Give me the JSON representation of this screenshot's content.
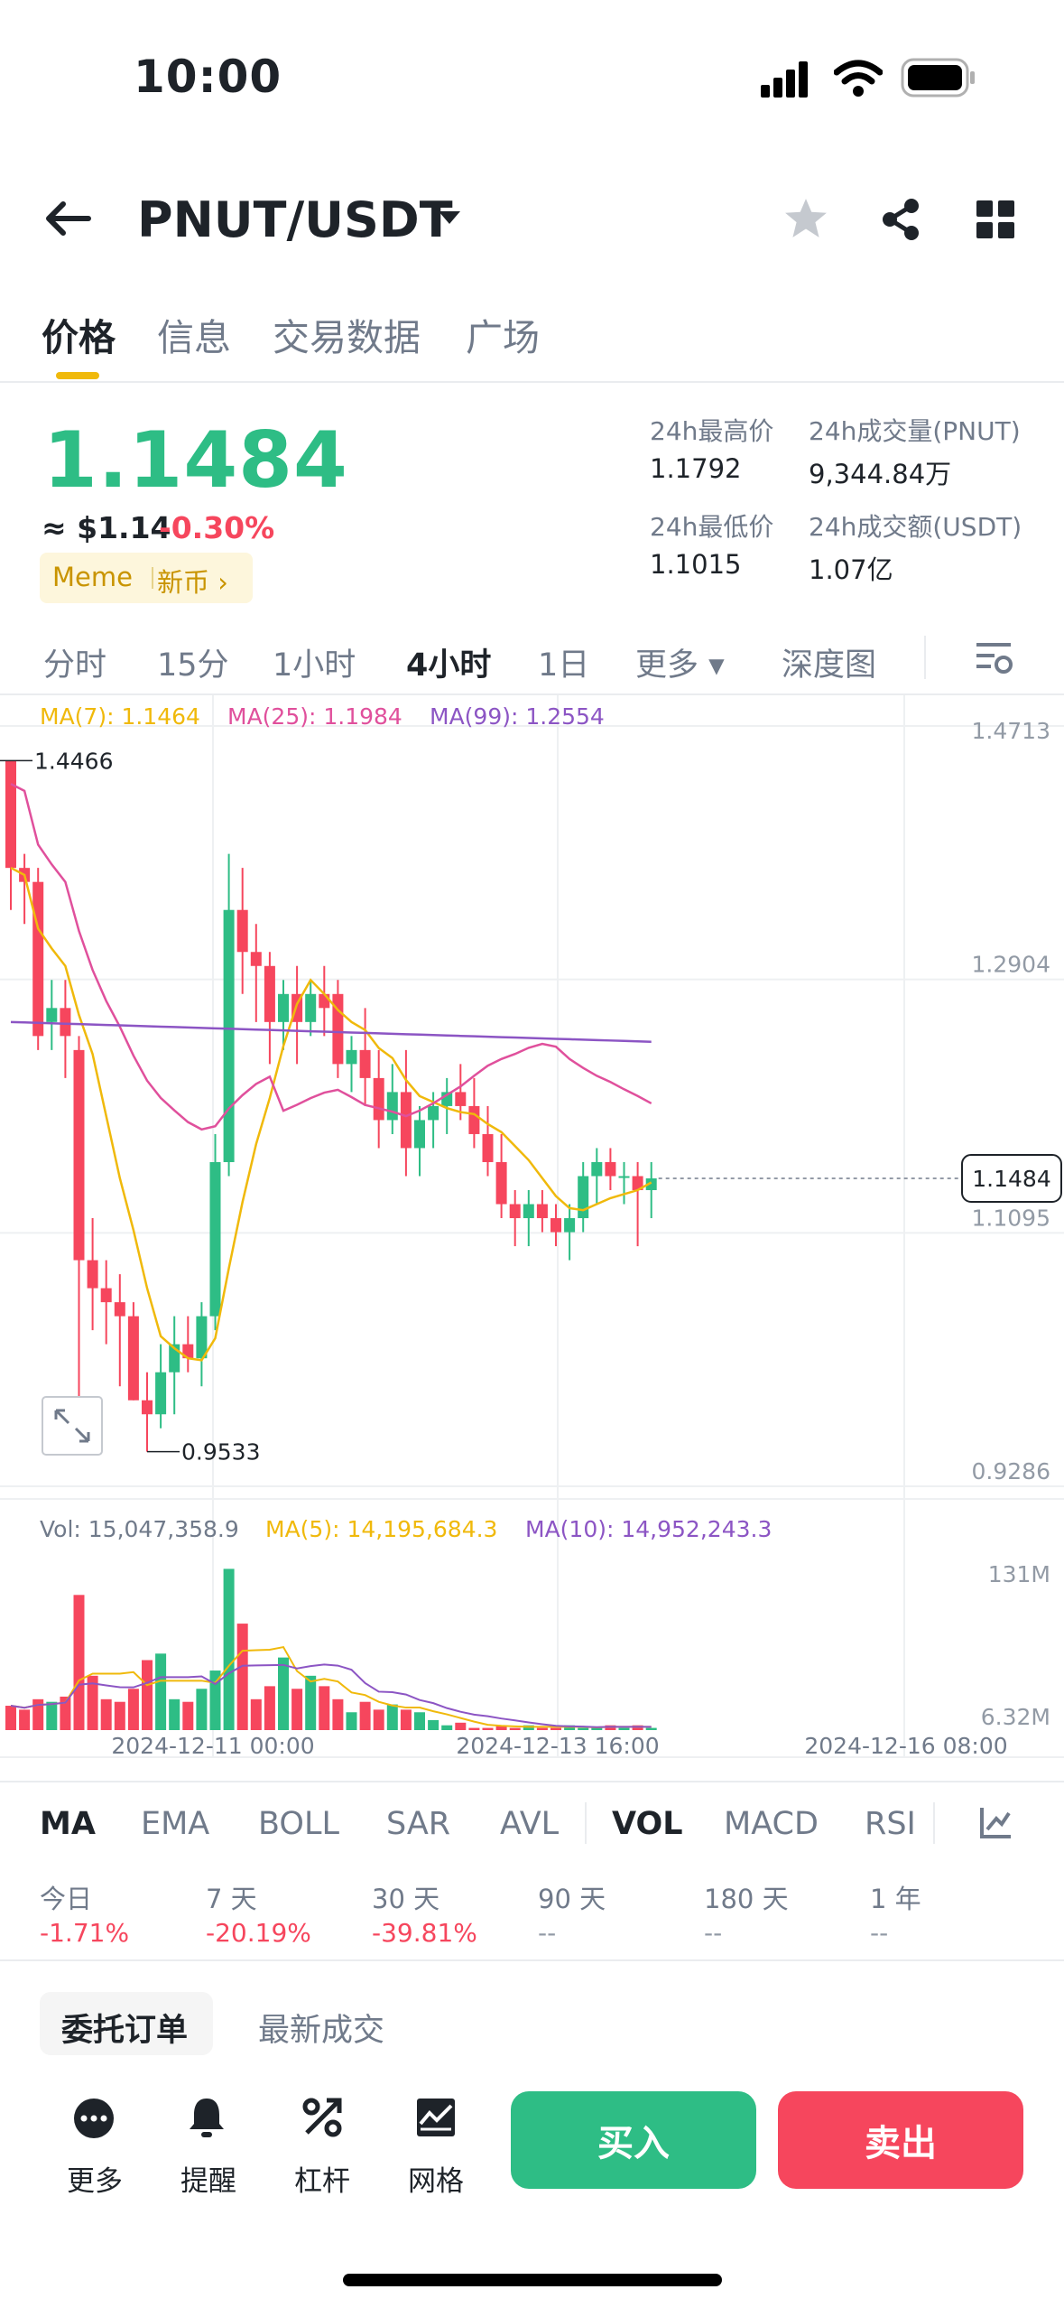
{
  "status_bar": {
    "time": "10:00"
  },
  "header": {
    "pair": "PNUT/USDT"
  },
  "tabs": [
    {
      "label": "价格",
      "active": true
    },
    {
      "label": "信息"
    },
    {
      "label": "交易数据"
    },
    {
      "label": "广场"
    }
  ],
  "ticker": {
    "last_price": "1.1484",
    "usd_price": "≈ $1.14",
    "change": "-0.30%",
    "tag_meme": "Meme",
    "tag_new": "新币 ›"
  },
  "stats": {
    "high_label": "24h最高价",
    "high": "1.1792",
    "vol_label": "24h成交量(PNUT)",
    "vol": "9,344.84万",
    "low_label": "24h最低价",
    "low": "1.1015",
    "amt_label": "24h成交额(USDT)",
    "amt": "1.07亿"
  },
  "timeframes": [
    {
      "label": "分时"
    },
    {
      "label": "15分"
    },
    {
      "label": "1小时"
    },
    {
      "label": "4小时",
      "active": true
    },
    {
      "label": "1日"
    },
    {
      "label": "更多 ▾"
    },
    {
      "label": "深度图"
    }
  ],
  "chart_data": {
    "type": "candlestick",
    "ma_legend": {
      "ma7": "MA(7): 1.1464",
      "ma25": "MA(25): 1.1984",
      "ma99": "MA(99): 1.2554"
    },
    "y_ticks": [
      "1.4713",
      "1.2904",
      "1.1095",
      "0.9286"
    ],
    "y_range": [
      0.9286,
      1.4713
    ],
    "high_label": "1.4466",
    "low_label": "0.9533",
    "current_price": "1.1484",
    "candles": [
      [
        1.4466,
        1.4466,
        1.34,
        1.37
      ],
      [
        1.37,
        1.38,
        1.33,
        1.36
      ],
      [
        1.36,
        1.37,
        1.24,
        1.25
      ],
      [
        1.26,
        1.29,
        1.24,
        1.27
      ],
      [
        1.27,
        1.29,
        1.22,
        1.25
      ],
      [
        1.24,
        1.25,
        0.99,
        1.09
      ],
      [
        1.09,
        1.12,
        1.04,
        1.07
      ],
      [
        1.07,
        1.09,
        1.03,
        1.06
      ],
      [
        1.06,
        1.08,
        1.0,
        1.05
      ],
      [
        1.05,
        1.06,
        0.99,
        0.99
      ],
      [
        0.99,
        1.01,
        0.9533,
        0.98
      ],
      [
        0.98,
        1.03,
        0.97,
        1.01
      ],
      [
        1.01,
        1.05,
        0.98,
        1.03
      ],
      [
        1.03,
        1.05,
        1.01,
        1.02
      ],
      [
        1.02,
        1.06,
        1.0,
        1.05
      ],
      [
        1.05,
        1.18,
        1.04,
        1.16
      ],
      [
        1.16,
        1.38,
        1.15,
        1.34
      ],
      [
        1.34,
        1.37,
        1.28,
        1.31
      ],
      [
        1.31,
        1.33,
        1.26,
        1.3
      ],
      [
        1.3,
        1.31,
        1.23,
        1.26
      ],
      [
        1.26,
        1.29,
        1.24,
        1.28
      ],
      [
        1.28,
        1.3,
        1.23,
        1.26
      ],
      [
        1.26,
        1.29,
        1.25,
        1.28
      ],
      [
        1.28,
        1.3,
        1.25,
        1.27
      ],
      [
        1.28,
        1.29,
        1.22,
        1.23
      ],
      [
        1.23,
        1.25,
        1.21,
        1.24
      ],
      [
        1.24,
        1.27,
        1.2,
        1.22
      ],
      [
        1.22,
        1.24,
        1.17,
        1.19
      ],
      [
        1.19,
        1.23,
        1.18,
        1.21
      ],
      [
        1.21,
        1.24,
        1.15,
        1.17
      ],
      [
        1.17,
        1.2,
        1.15,
        1.19
      ],
      [
        1.19,
        1.21,
        1.17,
        1.2
      ],
      [
        1.2,
        1.22,
        1.18,
        1.21
      ],
      [
        1.21,
        1.23,
        1.19,
        1.2
      ],
      [
        1.2,
        1.22,
        1.17,
        1.18
      ],
      [
        1.18,
        1.2,
        1.15,
        1.16
      ],
      [
        1.16,
        1.18,
        1.12,
        1.13
      ],
      [
        1.13,
        1.14,
        1.1,
        1.12
      ],
      [
        1.12,
        1.14,
        1.1,
        1.13
      ],
      [
        1.13,
        1.14,
        1.11,
        1.12
      ],
      [
        1.12,
        1.13,
        1.1,
        1.11
      ],
      [
        1.11,
        1.13,
        1.09,
        1.12
      ],
      [
        1.12,
        1.16,
        1.11,
        1.15
      ],
      [
        1.15,
        1.17,
        1.13,
        1.16
      ],
      [
        1.16,
        1.17,
        1.14,
        1.15
      ],
      [
        1.15,
        1.16,
        1.13,
        1.15
      ],
      [
        1.15,
        1.16,
        1.1,
        1.14
      ],
      [
        1.14,
        1.16,
        1.12,
        1.1484
      ]
    ],
    "volume_legend": {
      "vol": "Vol: 15,047,358.9",
      "ma5": "MA(5): 14,195,684.3",
      "ma10": "MA(10): 14,952,243.3"
    },
    "volume_ticks": [
      "131M",
      "6.32M"
    ],
    "volume_range": [
      6.32,
      131
    ],
    "volumes": [
      25,
      22,
      30,
      28,
      32,
      110,
      48,
      30,
      28,
      38,
      60,
      65,
      30,
      28,
      38,
      52,
      130,
      88,
      30,
      40,
      62,
      38,
      48,
      40,
      30,
      20,
      28,
      22,
      26,
      22,
      20,
      14,
      10,
      12,
      8,
      8,
      10,
      8,
      10,
      8,
      8,
      10,
      8,
      8,
      10,
      8,
      10,
      8
    ],
    "x_labels": [
      "2024-12-11 00:00",
      "2024-12-13 16:00",
      "2024-12-16 08:00"
    ]
  },
  "indicators": [
    {
      "label": "MA",
      "active": true
    },
    {
      "label": "EMA"
    },
    {
      "label": "BOLL"
    },
    {
      "label": "SAR"
    },
    {
      "label": "AVL"
    },
    {
      "label": "VOL",
      "active": true
    },
    {
      "label": "MACD"
    },
    {
      "label": "RSI"
    }
  ],
  "performance": [
    {
      "label": "今日",
      "value": "-1.71%"
    },
    {
      "label": "7 天",
      "value": "-20.19%"
    },
    {
      "label": "30 天",
      "value": "-39.81%"
    },
    {
      "label": "90 天",
      "value": "--"
    },
    {
      "label": "180 天",
      "value": "--"
    },
    {
      "label": "1 年",
      "value": "--"
    }
  ],
  "order_tabs": {
    "orders": "委托订单",
    "trades": "最新成交"
  },
  "dock": {
    "more": "更多",
    "alert": "提醒",
    "leverage": "杠杆",
    "grid": "网格",
    "buy": "买入",
    "sell": "卖出"
  },
  "colors": {
    "up": "#2ebd85",
    "down": "#f6465d",
    "ma7": "#f0b90b",
    "ma25": "#e0509c",
    "ma99": "#8c55c4",
    "accent": "#f0b90b"
  }
}
